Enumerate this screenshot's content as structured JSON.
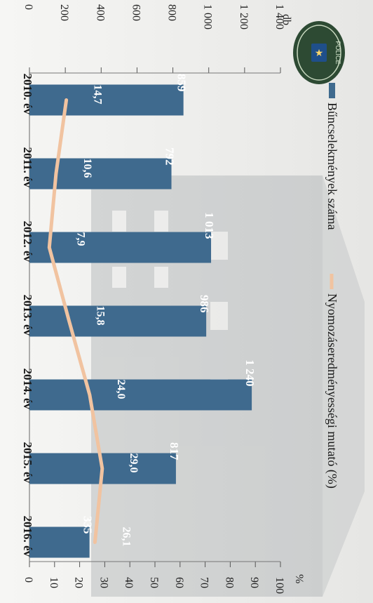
{
  "chart_data": {
    "type": "bar",
    "categories": [
      "2010. év",
      "2011. év",
      "2012. év",
      "2013. év",
      "2014. év",
      "2015. év",
      "2016. év"
    ],
    "series": [
      {
        "name": "Bűncselekmények száma",
        "type": "bar",
        "values": [
          859,
          792,
          1013,
          986,
          1240,
          817,
          335
        ],
        "labels": [
          "859",
          "792",
          "1 013",
          "986",
          "1 240",
          "817",
          "335"
        ],
        "color": "#3f6a8e"
      },
      {
        "name": "Nyomozáseredményességi mutató (%)",
        "type": "line",
        "values": [
          14.7,
          10.6,
          7.9,
          15.8,
          24.0,
          29.0,
          26.1
        ],
        "labels": [
          "14,7",
          "10,6",
          "7,9",
          "15,8",
          "24,0",
          "29,0",
          "26,1"
        ],
        "color": "#f1c3a0"
      }
    ],
    "y_left": {
      "unit": "db",
      "ylim": [
        0,
        1400
      ],
      "ticks": [
        "0",
        "200",
        "400",
        "600",
        "800",
        "1 000",
        "1 200",
        "1 400"
      ]
    },
    "y_right": {
      "unit": "%",
      "ylim": [
        0,
        100
      ],
      "ticks": [
        "0",
        "10",
        "20",
        "30",
        "40",
        "50",
        "60",
        "70",
        "80",
        "90",
        "100"
      ]
    },
    "legend_position": "top",
    "badge_text": "POLICE"
  }
}
